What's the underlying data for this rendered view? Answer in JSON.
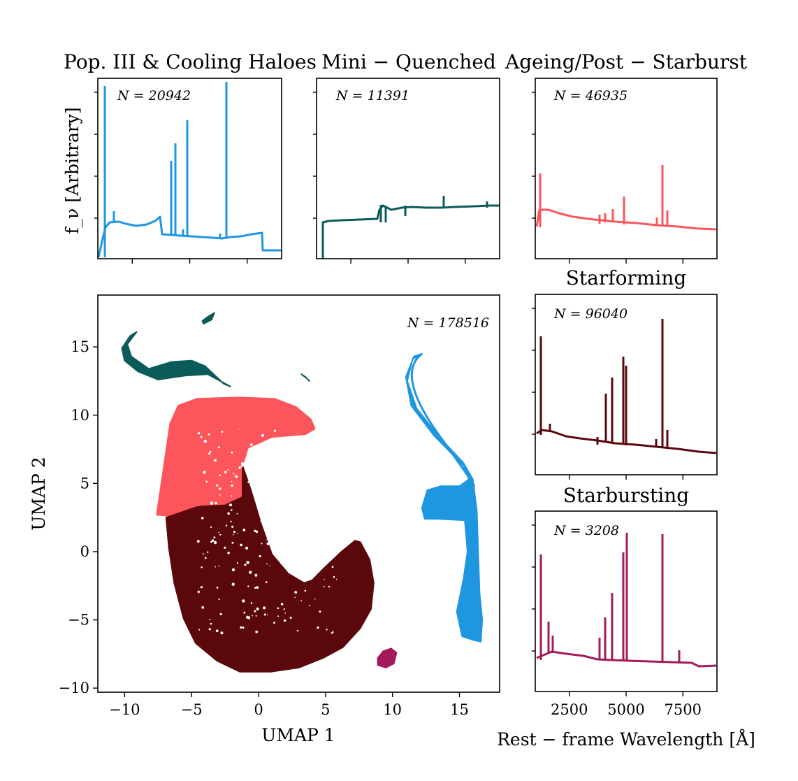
{
  "colors": {
    "pop3": "#1f96e0",
    "quenched": "#0b5b5a",
    "ageing": "#fc555c",
    "starforming": "#5a080c",
    "starbursting": "#a31b5a"
  },
  "titles": {
    "pop3": "Pop. III & Cooling Haloes",
    "quenched": "Mini − Quenched",
    "ageing": "Ageing/Post − Starburst",
    "starforming": "Starforming",
    "starbursting": "Starbursting"
  },
  "counts": {
    "pop3": "N = 20942",
    "quenched": "N = 11391",
    "ageing": "N = 46935",
    "starforming": "N = 96040",
    "starbursting": "N = 3208",
    "umap": "N = 178516"
  },
  "axes": {
    "umap_xlabel": "UMAP 1",
    "umap_ylabel": "UMAP 2",
    "spec_ylabel": "f_ν [Arbitrary]",
    "spec_xlabel": "Rest − frame Wavelength [Å]"
  },
  "chart_data": [
    {
      "type": "scatter",
      "name": "umap",
      "xlabel": "UMAP 1",
      "ylabel": "UMAP 2",
      "xlim": [
        -12,
        18
      ],
      "ylim": [
        -10.3,
        18.8
      ],
      "xticks": [
        -10,
        -5,
        0,
        5,
        10,
        15
      ],
      "yticks": [
        -10,
        -5,
        0,
        5,
        10,
        15
      ],
      "annotation": "N = 178516",
      "clusters": [
        {
          "group": "quenched",
          "outline": [
            [
              -10.2,
              14.9
            ],
            [
              -9.6,
              15.8
            ],
            [
              -9.1,
              16.1
            ],
            [
              -9.8,
              15.2
            ],
            [
              -9.5,
              14.3
            ],
            [
              -8.2,
              13.4
            ],
            [
              -6.5,
              13.9
            ],
            [
              -5.0,
              14.0
            ],
            [
              -4.0,
              13.6
            ],
            [
              -2.6,
              12.3
            ],
            [
              -2.1,
              12.1
            ],
            [
              -3.8,
              13.0
            ],
            [
              -5.5,
              12.9
            ],
            [
              -7.5,
              12.6
            ],
            [
              -9.0,
              13.2
            ],
            [
              -10.0,
              14.0
            ]
          ]
        },
        {
          "group": "quenched",
          "outline": [
            [
              -4.2,
              16.9
            ],
            [
              -3.8,
              17.2
            ],
            [
              -3.3,
              17.5
            ],
            [
              -3.5,
              17.0
            ],
            [
              -4.1,
              16.7
            ]
          ]
        },
        {
          "group": "quenched",
          "outline": [
            [
              3.2,
              13.0
            ],
            [
              3.6,
              12.7
            ],
            [
              3.8,
              12.5
            ],
            [
              3.5,
              12.8
            ]
          ]
        },
        {
          "group": "ageing",
          "outline": [
            [
              -7.6,
              2.7
            ],
            [
              -6.6,
              9.4
            ],
            [
              -6.0,
              10.7
            ],
            [
              -4.6,
              11.2
            ],
            [
              -1.5,
              11.3
            ],
            [
              1.2,
              11.2
            ],
            [
              2.8,
              10.6
            ],
            [
              3.9,
              9.7
            ],
            [
              4.2,
              9.0
            ],
            [
              3.5,
              8.6
            ],
            [
              1.0,
              8.4
            ],
            [
              -0.8,
              7.6
            ],
            [
              -1.2,
              6.3
            ],
            [
              -1.2,
              4.0
            ],
            [
              -2.5,
              3.4
            ],
            [
              -4.5,
              3.3
            ],
            [
              -6.5,
              2.6
            ]
          ]
        },
        {
          "group": "starforming",
          "outline": [
            [
              -6.9,
              2.5
            ],
            [
              -4.5,
              3.3
            ],
            [
              -2.5,
              3.4
            ],
            [
              -1.2,
              4.0
            ],
            [
              -1.2,
              6.3
            ],
            [
              -0.6,
              4.6
            ],
            [
              0.2,
              2.0
            ],
            [
              1.0,
              -0.2
            ],
            [
              2.2,
              -1.6
            ],
            [
              3.4,
              -2.3
            ],
            [
              4.0,
              -2.1
            ],
            [
              4.8,
              -1.3
            ],
            [
              6.2,
              0.0
            ],
            [
              7.2,
              0.8
            ],
            [
              7.6,
              0.7
            ],
            [
              8.3,
              -0.6
            ],
            [
              8.6,
              -2.3
            ],
            [
              8.4,
              -4.2
            ],
            [
              7.6,
              -5.6
            ],
            [
              6.3,
              -7.0
            ],
            [
              4.8,
              -7.8
            ],
            [
              3.0,
              -8.5
            ],
            [
              0.9,
              -8.8
            ],
            [
              -1.4,
              -8.8
            ],
            [
              -3.1,
              -8.0
            ],
            [
              -4.7,
              -6.7
            ],
            [
              -5.6,
              -4.9
            ],
            [
              -6.3,
              -2.3
            ],
            [
              -6.7,
              0.3
            ]
          ]
        },
        {
          "group": "starbursting",
          "outline": [
            [
              8.9,
              -7.8
            ],
            [
              9.3,
              -7.3
            ],
            [
              9.9,
              -7.1
            ],
            [
              10.3,
              -7.4
            ],
            [
              10.1,
              -8.2
            ],
            [
              9.5,
              -8.5
            ],
            [
              8.9,
              -8.3
            ]
          ]
        },
        {
          "group": "pop3",
          "outline": [
            [
              12.2,
              14.5
            ],
            [
              11.5,
              14.1
            ],
            [
              11.1,
              12.5
            ],
            [
              11.8,
              10.5
            ],
            [
              13.4,
              8.5
            ],
            [
              15.3,
              6.5
            ],
            [
              16.0,
              5.3
            ],
            [
              16.3,
              3.0
            ],
            [
              16.4,
              0.0
            ],
            [
              16.5,
              -3.0
            ],
            [
              16.7,
              -5.0
            ],
            [
              16.6,
              -6.6
            ],
            [
              16.1,
              -6.5
            ],
            [
              15.2,
              -6.2
            ],
            [
              14.8,
              -4.4
            ],
            [
              15.3,
              -2.0
            ],
            [
              15.6,
              0.0
            ],
            [
              15.4,
              2.3
            ],
            [
              13.3,
              2.4
            ],
            [
              12.4,
              2.4
            ],
            [
              12.2,
              3.2
            ],
            [
              12.6,
              4.5
            ],
            [
              13.6,
              4.8
            ],
            [
              15.0,
              4.8
            ],
            [
              15.7,
              5.3
            ],
            [
              15.3,
              6.3
            ],
            [
              13.1,
              8.5
            ],
            [
              11.4,
              10.7
            ],
            [
              11.0,
              12.8
            ],
            [
              11.6,
              14.3
            ]
          ]
        }
      ]
    },
    {
      "type": "line",
      "name": "pop3",
      "title": "Pop. III & Cooling Haloes",
      "annotation": "N = 20942",
      "xlim": [
        1000,
        9000
      ],
      "ylog": true,
      "ylabel": "f_ν [Arbitrary]"
    },
    {
      "type": "line",
      "name": "quenched",
      "title": "Mini − Quenched",
      "annotation": "N = 11391",
      "xlim": [
        1000,
        9000
      ],
      "ylog": true
    },
    {
      "type": "line",
      "name": "ageing",
      "title": "Ageing/Post − Starburst",
      "annotation": "N = 46935",
      "xlim": [
        1000,
        9000
      ],
      "ylog": true
    },
    {
      "type": "line",
      "name": "starforming",
      "title": "Starforming",
      "annotation": "N = 96040",
      "xlim": [
        1000,
        9000
      ],
      "ylog": true
    },
    {
      "type": "line",
      "name": "starbursting",
      "title": "Starbursting",
      "annotation": "N = 3208",
      "xlim": [
        1000,
        9000
      ],
      "xticks": [
        2500,
        5000,
        7500
      ],
      "ylog": true,
      "xlabel": "Rest − frame Wavelength [Å]"
    }
  ]
}
